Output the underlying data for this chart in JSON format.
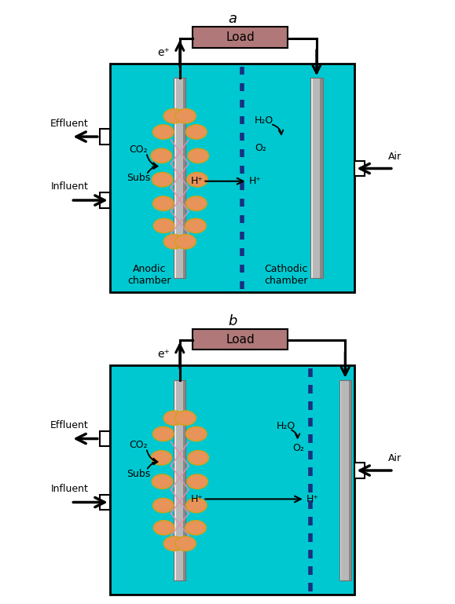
{
  "fig_width": 5.79,
  "fig_height": 7.69,
  "dpi": 100,
  "bg_color": "#ffffff",
  "chamber_color": "#00c8d0",
  "load_box_color": "#b07878",
  "load_text": "Load",
  "anode_color_top": "#e0e0e0",
  "anode_color_bot": "#909090",
  "cathode_color_top": "#e0e0e0",
  "cathode_color_bot": "#909090",
  "biofilm_color": "#e8935a",
  "biofilm_outline": "#d4a020",
  "pem_color": "#1a3080",
  "nanowire_color": "#e090b0",
  "label_a": "a",
  "label_b": "b",
  "effluent_text": "Effluent",
  "influent_text": "Influent",
  "air_text": "Air",
  "anodic_chamber_text": "Anodic\nchamber",
  "cathodic_chamber_text": "Cathodic\nchamber",
  "co2_text": "CO₂",
  "subs_text": "Subs",
  "hp_text": "H⁺",
  "h2o_text": "H₂O",
  "o2_text": "O₂",
  "ep_text": "e⁺"
}
